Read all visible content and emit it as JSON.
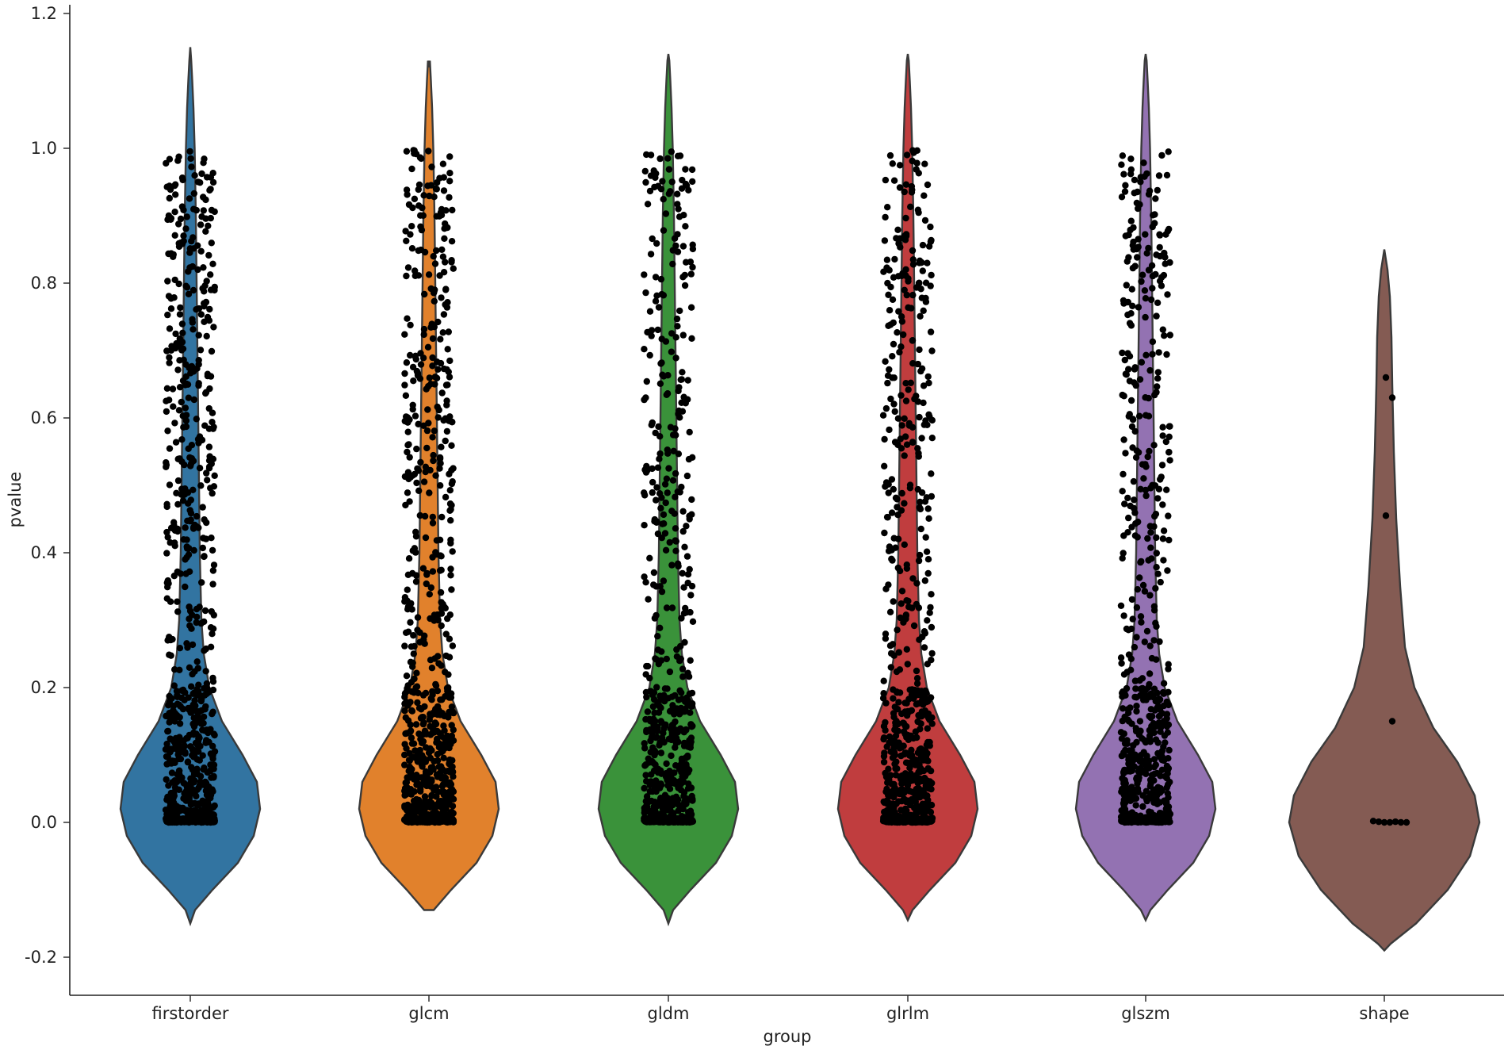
{
  "chart_data": {
    "type": "violin",
    "xlabel": "group",
    "ylabel": "pvalue",
    "ylim": [
      -0.2,
      1.2
    ],
    "yticks": [
      -0.2,
      0.0,
      0.2,
      0.4,
      0.6,
      0.8,
      1.0,
      1.2
    ],
    "ytick_labels": [
      "-0.2",
      "0.0",
      "0.2",
      "0.4",
      "0.6",
      "0.8",
      "1.0",
      "1.2"
    ],
    "grid": false,
    "categories": [
      "firstorder",
      "glcm",
      "gldm",
      "glrlm",
      "glszm",
      "shape"
    ],
    "colors": [
      "#3274a1",
      "#e1812c",
      "#3a923a",
      "#c03d3e",
      "#9372b2",
      "#845b53"
    ],
    "violins": [
      {
        "group": "firstorder",
        "min": -0.15,
        "max": 1.15,
        "peak": 0.03,
        "approx_points": 900
      },
      {
        "group": "glcm",
        "min": -0.13,
        "max": 1.12,
        "peak": 0.02,
        "approx_points": 900
      },
      {
        "group": "gldm",
        "min": -0.15,
        "max": 1.14,
        "peak": 0.02,
        "approx_points": 750
      },
      {
        "group": "glrlm",
        "min": -0.145,
        "max": 1.14,
        "peak": 0.02,
        "approx_points": 800
      },
      {
        "group": "glszm",
        "min": -0.145,
        "max": 1.14,
        "peak": 0.02,
        "approx_points": 750
      },
      {
        "group": "shape",
        "min": -0.19,
        "max": 0.85,
        "peak": 0.01,
        "points": [
          0.66,
          0.63,
          0.455,
          0.15,
          0.002,
          0.001,
          0.0,
          0.0,
          0.001,
          0.0,
          0.0
        ]
      }
    ]
  }
}
